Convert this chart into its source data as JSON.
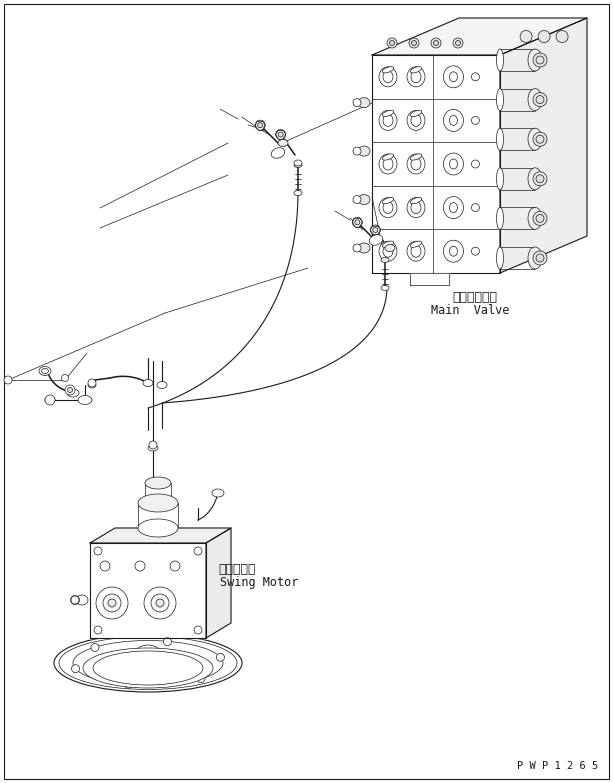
{
  "bg_color": "#ffffff",
  "line_color": "#1a1a1a",
  "main_valve_label_jp": "メインバルブ",
  "main_valve_label_en": "Main  Valve",
  "swing_motor_label_jp": "旋回モータ",
  "swing_motor_label_en": "Swing Motor",
  "part_number": "P W P 1 2 6 5",
  "label_fontsize": 8.5,
  "part_number_fontsize": 7.5,
  "figsize": [
    6.13,
    7.83
  ],
  "dpi": 100,
  "xlim": [
    0,
    613
  ],
  "ylim": [
    0,
    783
  ],
  "border_lw": 0.8
}
